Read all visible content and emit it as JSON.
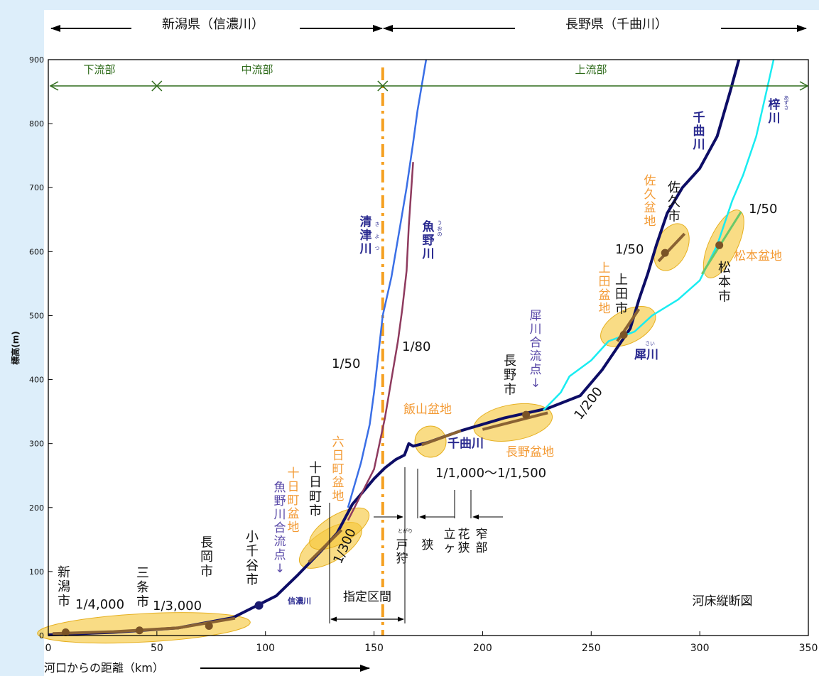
{
  "chart_data": {
    "type": "line",
    "title": "河床縦断図",
    "xlabel": "河口からの距離（km）",
    "ylabel": "標高(m)",
    "xlim": [
      0,
      350
    ],
    "ylim": [
      0,
      900
    ],
    "x_ticks": [
      "0",
      "50",
      "100",
      "150",
      "200",
      "250",
      "300",
      "350"
    ],
    "y_ticks": [
      "0",
      "100",
      "200",
      "300",
      "400",
      "500",
      "600",
      "700",
      "800",
      "900"
    ],
    "prefecture_labels": {
      "niigata": "新潟県（信濃川）",
      "nagano": "長野県（千曲川）"
    },
    "reaches": [
      {
        "name": "下流部",
        "x_range": [
          0,
          50
        ]
      },
      {
        "name": "中流部",
        "x_range": [
          50,
          154
        ]
      },
      {
        "name": "上流部",
        "x_range": [
          154,
          350
        ]
      }
    ],
    "designated_section": {
      "label": "指定区間",
      "x_range": [
        129,
        165
      ]
    },
    "series": [
      {
        "name": "千曲川",
        "color": "#0d0d66",
        "x": [
          0,
          30,
          60,
          85,
          95,
          105,
          115,
          125,
          133,
          140,
          145,
          150,
          155,
          160,
          164,
          166,
          168,
          175,
          190,
          210,
          230,
          245,
          255,
          262,
          268,
          272,
          276,
          280,
          285,
          292,
          300,
          308,
          314,
          318
        ],
        "y": [
          1,
          5,
          12,
          28,
          45,
          62,
          95,
          130,
          160,
          205,
          225,
          245,
          262,
          275,
          282,
          300,
          296,
          302,
          320,
          340,
          355,
          375,
          415,
          450,
          480,
          525,
          565,
          610,
          660,
          700,
          730,
          780,
          850,
          900
        ]
      },
      {
        "name": "梓川",
        "color": "#19ecf1",
        "x": [
          228,
          236,
          240,
          250,
          258,
          270,
          278,
          290,
          300,
          308,
          315,
          320,
          326,
          330,
          334
        ],
        "y": [
          352,
          380,
          405,
          430,
          460,
          475,
          500,
          525,
          555,
          610,
          680,
          720,
          780,
          840,
          900
        ]
      },
      {
        "name": "清津川",
        "color": "#3a6fe6",
        "x": [
          138,
          144,
          148,
          150,
          152,
          154,
          158,
          162,
          165,
          168,
          170,
          172,
          174
        ],
        "y": [
          200,
          270,
          330,
          380,
          440,
          500,
          560,
          640,
          700,
          770,
          820,
          860,
          900
        ]
      },
      {
        "name": "魚野川",
        "color": "#8e3a5e",
        "x": [
          138,
          144,
          150,
          155,
          158,
          161,
          163,
          165,
          166,
          168
        ],
        "y": [
          180,
          220,
          260,
          340,
          400,
          460,
          510,
          570,
          640,
          740
        ]
      }
    ],
    "gradients": [
      "1/4,000",
      "1/3,000",
      "1/300",
      "1/50",
      "1/80",
      "1/1,000～1/1,500",
      "1/200",
      "1/50",
      "1/50"
    ],
    "basins": [
      "十日町盆地",
      "六日町盆地",
      "飯山盆地",
      "長野盆地",
      "上田盆地",
      "佐久盆地",
      "松本盆地"
    ],
    "cities": [
      {
        "name": "新潟市",
        "x": 8,
        "y": 5
      },
      {
        "name": "三条市",
        "x": 42,
        "y": 8
      },
      {
        "name": "長岡市",
        "x": 74,
        "y": 15
      },
      {
        "name": "小千谷市",
        "x": 97,
        "y": 47
      },
      {
        "name": "十日町市",
        "x": 0,
        "y": 0
      },
      {
        "name": "長野市",
        "x": 220,
        "y": 345
      },
      {
        "name": "上田市",
        "x": 265,
        "y": 470
      },
      {
        "name": "佐久市",
        "x": 284,
        "y": 598
      },
      {
        "name": "松本市",
        "x": 309,
        "y": 610
      }
    ],
    "annotations": [
      "魚野川合流点↓",
      "犀川合流点↓",
      "信濃川",
      "犀川",
      "戸狩狭窄部",
      "立ヶ花狭窄部"
    ],
    "furigana": [
      "きよつ",
      "うおの",
      "とがり",
      "あずさ",
      "さい"
    ],
    "grid": false
  }
}
